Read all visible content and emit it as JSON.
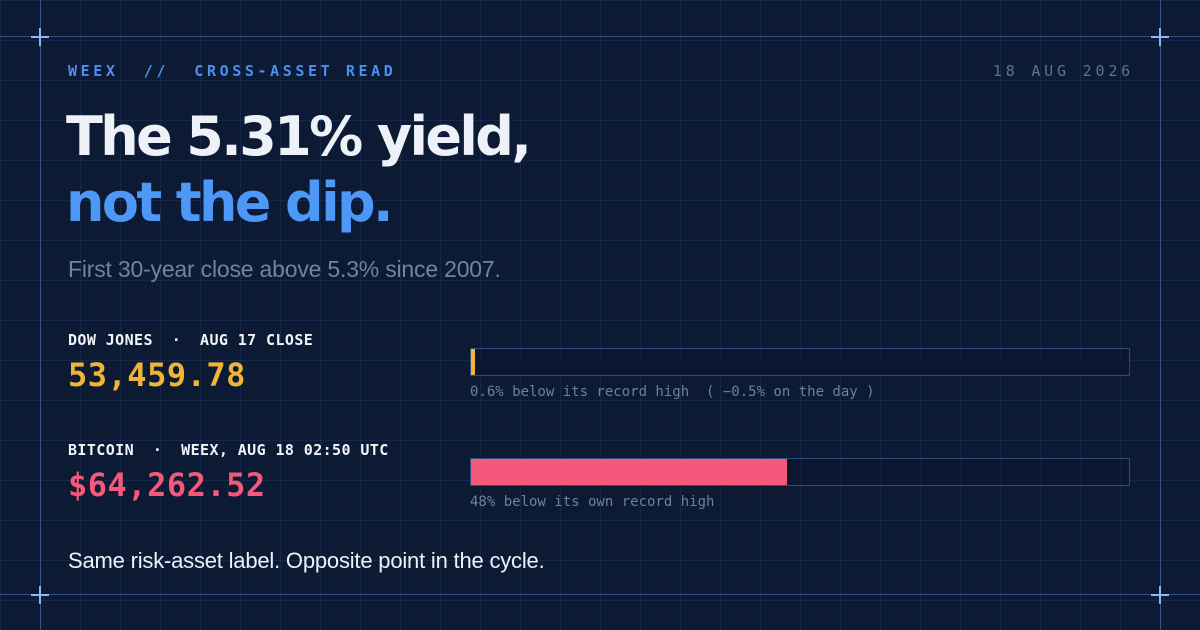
{
  "header": {
    "kicker": "WEEX  //  CROSS-ASSET READ",
    "date": "18 AUG 2026"
  },
  "headline": {
    "line1": "The 5.31% yield,",
    "line2": "not the dip."
  },
  "subtitle": "First 30-year close above 5.3% since 2007.",
  "assets": {
    "dow": {
      "label": "DOW JONES  ·  AUG 17 CLOSE",
      "value": "53,459.78",
      "caption": "0.6% below its record high  ( −0.5% on the day )",
      "bar_fraction": 0.006
    },
    "btc": {
      "label": "BITCOIN  ·  WEEX, AUG 18 02:50 UTC",
      "value": "$64,262.52",
      "caption": "48% below its own record high",
      "bar_fraction": 0.48
    }
  },
  "footer": "Same risk-asset label. Opposite point in the cycle.",
  "colors": {
    "background": "#0c1a34",
    "accent_blue": "#4d97f7",
    "dow_gold": "#f1b535",
    "btc_pink": "#f5587a"
  }
}
